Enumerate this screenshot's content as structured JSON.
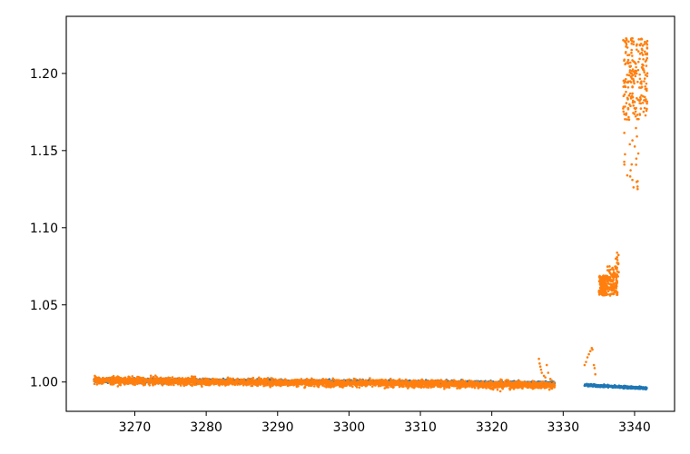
{
  "chart_data": {
    "type": "scatter",
    "title": "",
    "xlabel": "",
    "ylabel": "",
    "xlim": [
      3260.4,
      3345.6
    ],
    "ylim": [
      0.981,
      1.237
    ],
    "x_ticks": [
      3270,
      3280,
      3290,
      3300,
      3310,
      3320,
      3330,
      3340
    ],
    "x_tick_labels": [
      "3270",
      "3280",
      "3290",
      "3300",
      "3310",
      "3320",
      "3330",
      "3340"
    ],
    "y_ticks": [
      1.0,
      1.05,
      1.1,
      1.15,
      1.2
    ],
    "y_tick_labels": [
      "1.00",
      "1.05",
      "1.10",
      "1.15",
      "1.20"
    ],
    "grid": false,
    "legend": "none",
    "series": [
      {
        "color": "#1f77b4",
        "segments": [
          {
            "x_start": 3264.3,
            "x_end": 3328.8,
            "y_start": 1.001,
            "y_end": 0.999,
            "scatter": 0.0007
          },
          {
            "x_start": 3333.0,
            "x_end": 3341.7,
            "y_start": 0.998,
            "y_end": 0.996,
            "scatter": 0.0004
          }
        ]
      },
      {
        "color": "#ff7f0e",
        "segments": [
          {
            "x_start": 3264.3,
            "x_end": 3328.8,
            "y_start": 1.001,
            "y_end": 0.998,
            "scatter": 0.0012
          }
        ],
        "points": [
          [
            3264.4,
            1.004
          ],
          [
            3264.6,
            1.003
          ],
          [
            3294.1,
            1.002
          ],
          [
            3305.4,
            0.998
          ],
          [
            3306.0,
            0.997
          ],
          [
            3320.8,
            0.995
          ],
          [
            3321.2,
            0.994
          ],
          [
            3318.1,
            0.996
          ],
          [
            3322.5,
            0.996
          ],
          [
            3326.6,
            1.015
          ],
          [
            3326.7,
            1.012
          ],
          [
            3326.8,
            1.01
          ],
          [
            3326.9,
            1.008
          ],
          [
            3327.0,
            1.006
          ],
          [
            3327.3,
            1.004
          ],
          [
            3327.5,
            1.003
          ],
          [
            3327.7,
            1.011
          ],
          [
            3327.9,
            1.006
          ],
          [
            3328.2,
            1.002
          ],
          [
            3328.4,
            1.001
          ],
          [
            3328.6,
            0.999
          ],
          [
            3328.8,
            0.998
          ],
          [
            3333.0,
            1.011
          ],
          [
            3333.2,
            1.013
          ],
          [
            3333.4,
            1.016
          ],
          [
            3333.6,
            1.018
          ],
          [
            3333.8,
            1.02
          ],
          [
            3334.0,
            1.022
          ],
          [
            3334.1,
            1.021
          ],
          [
            3334.3,
            1.011
          ],
          [
            3334.4,
            1.009
          ],
          [
            3334.5,
            1.005
          ]
        ],
        "clusters": [
          {
            "x_start": 3335.0,
            "x_end": 3336.2,
            "y_min": 1.056,
            "y_max": 1.069,
            "count": 150
          },
          {
            "x_start": 3336.2,
            "x_end": 3337.6,
            "y_min": 1.056,
            "y_max": 1.075,
            "count": 110
          },
          {
            "x_start": 3337.3,
            "x_end": 3337.8,
            "y_min": 1.068,
            "y_max": 1.085,
            "count": 25
          },
          {
            "x_start": 3338.4,
            "x_end": 3341.8,
            "y_min": 1.17,
            "y_max": 1.223,
            "count": 220
          },
          {
            "x_start": 3338.5,
            "x_end": 3340.6,
            "y_min": 1.124,
            "y_max": 1.168,
            "count": 22
          }
        ]
      }
    ]
  }
}
